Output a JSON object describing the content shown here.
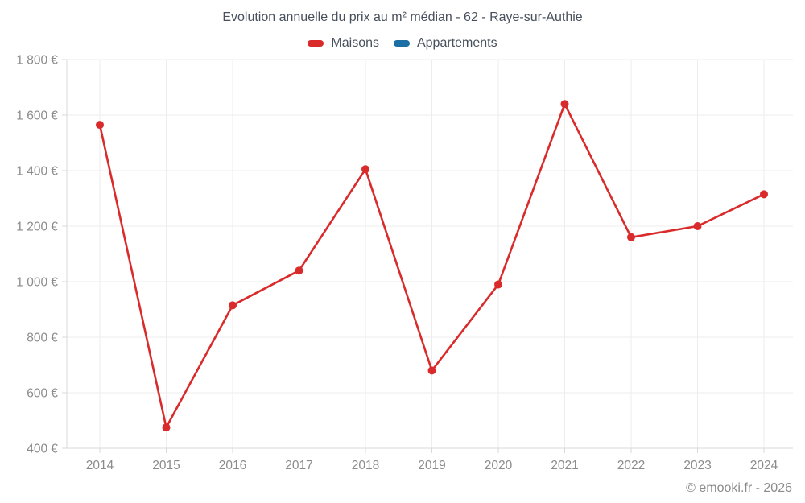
{
  "chart": {
    "title": "Evolution annuelle du prix au m² médian - 62 - Raye-sur-Authie",
    "footer": "© emooki.fr - 2026"
  },
  "chart_data": {
    "type": "line",
    "title": "Evolution annuelle du prix au m² médian - 62 - Raye-sur-Authie",
    "categories": [
      "2014",
      "2015",
      "2016",
      "2017",
      "2018",
      "2019",
      "2020",
      "2021",
      "2022",
      "2023",
      "2024"
    ],
    "series": [
      {
        "name": "Maisons",
        "color": "#d92b2b",
        "values": [
          1565,
          475,
          915,
          1040,
          1405,
          680,
          990,
          1640,
          1160,
          1200,
          1315
        ]
      },
      {
        "name": "Appartements",
        "color": "#1b6fa5",
        "values": []
      }
    ],
    "xlabel": "",
    "ylabel": "",
    "ylim": [
      400,
      1800
    ],
    "ytick_step": 200,
    "ytick_suffix": " €",
    "grid": true,
    "legend_position": "top",
    "colors": {
      "grid": "#ededed",
      "axis": "#d9d9d9",
      "tick_label": "#8b8b8b",
      "text": "#47505c"
    }
  }
}
